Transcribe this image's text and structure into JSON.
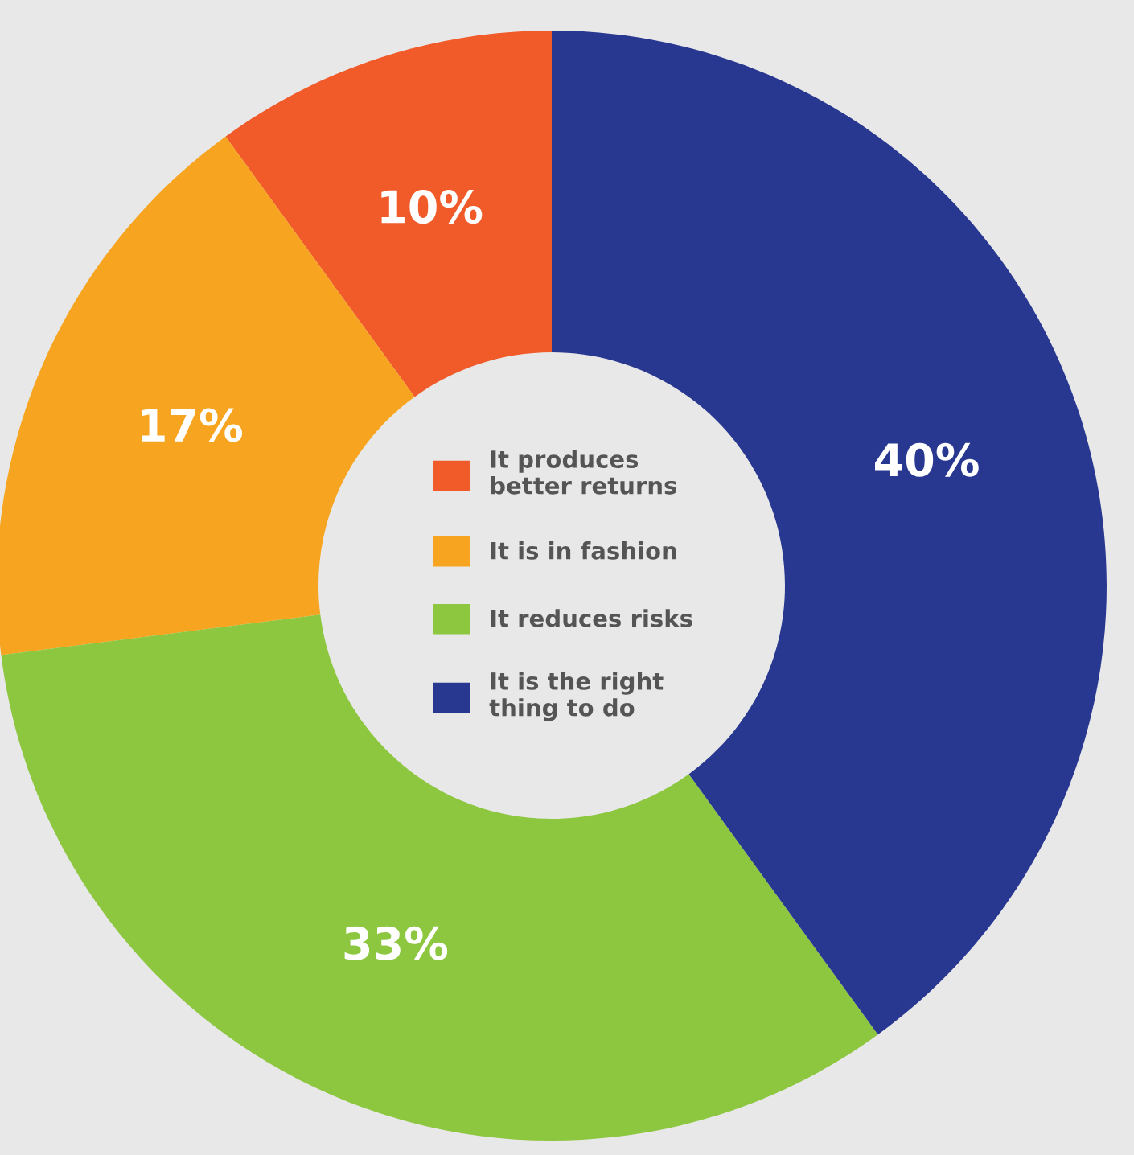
{
  "chart_data": {
    "type": "donut",
    "categories": [
      "It produces\nbetter returns",
      "It is in fashion",
      "It reduces risks",
      "It is the right\nthing to do"
    ],
    "values": [
      10,
      17,
      33,
      40
    ],
    "colors": [
      "#f15a29",
      "#f7a520",
      "#8dc63f",
      "#283891"
    ],
    "value_labels": [
      "10%",
      "17%",
      "33%",
      "40%"
    ],
    "legend": "center"
  }
}
